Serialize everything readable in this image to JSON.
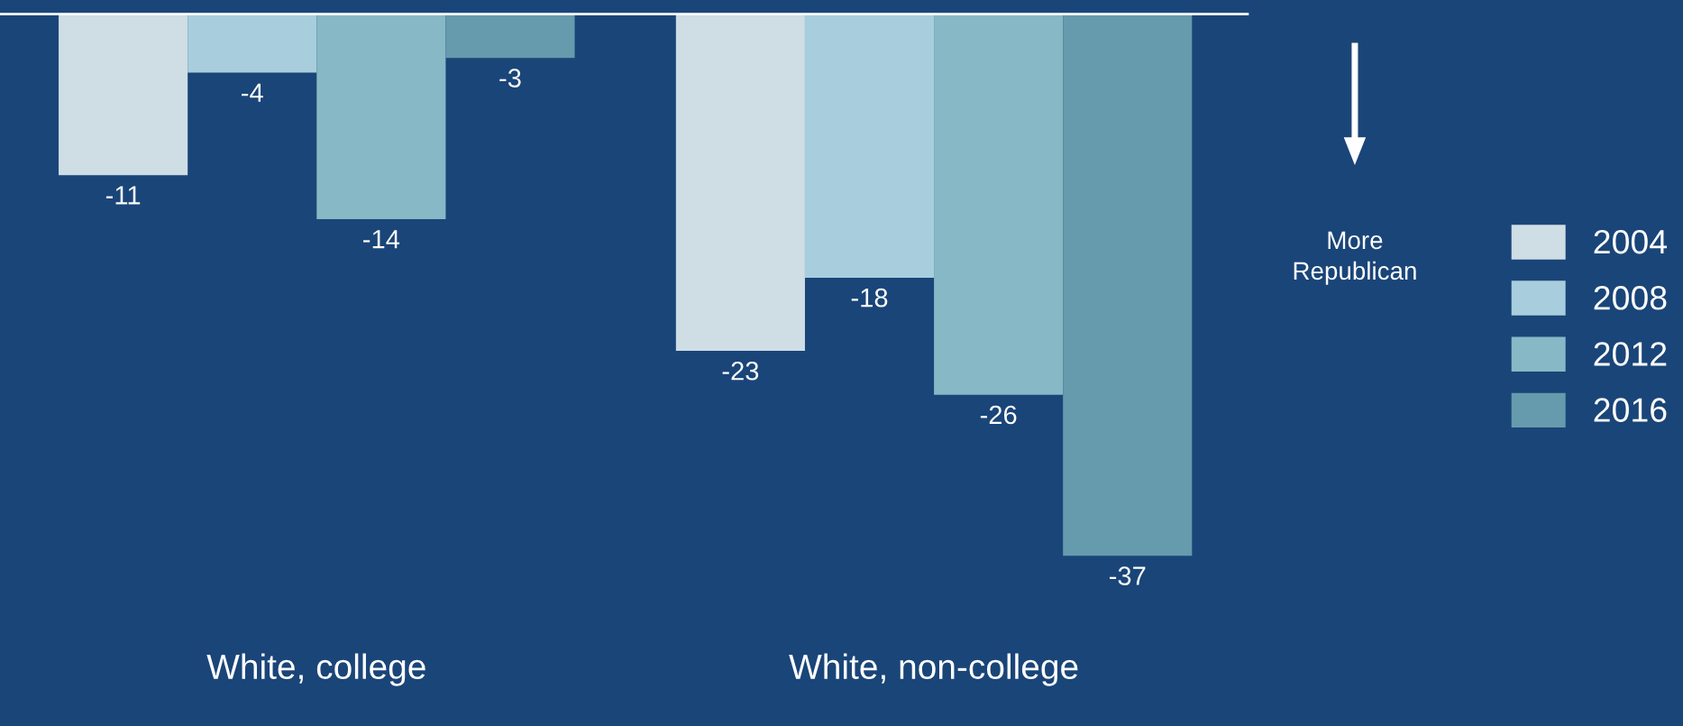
{
  "chart_data": {
    "type": "bar",
    "categories": [
      "White, college",
      "White, non-college"
    ],
    "series": [
      {
        "name": "2004",
        "color": "#cfdde5",
        "values": [
          -11,
          -23
        ]
      },
      {
        "name": "2008",
        "color": "#a8cddc",
        "values": [
          -4,
          -18
        ]
      },
      {
        "name": "2012",
        "color": "#86b8c6",
        "values": [
          -14,
          -26
        ]
      },
      {
        "name": "2016",
        "color": "#669bad",
        "values": [
          -3,
          -37
        ]
      }
    ],
    "data_labels": true,
    "legend": "right",
    "grid": false,
    "annotations": [
      "More Republican"
    ]
  }
}
